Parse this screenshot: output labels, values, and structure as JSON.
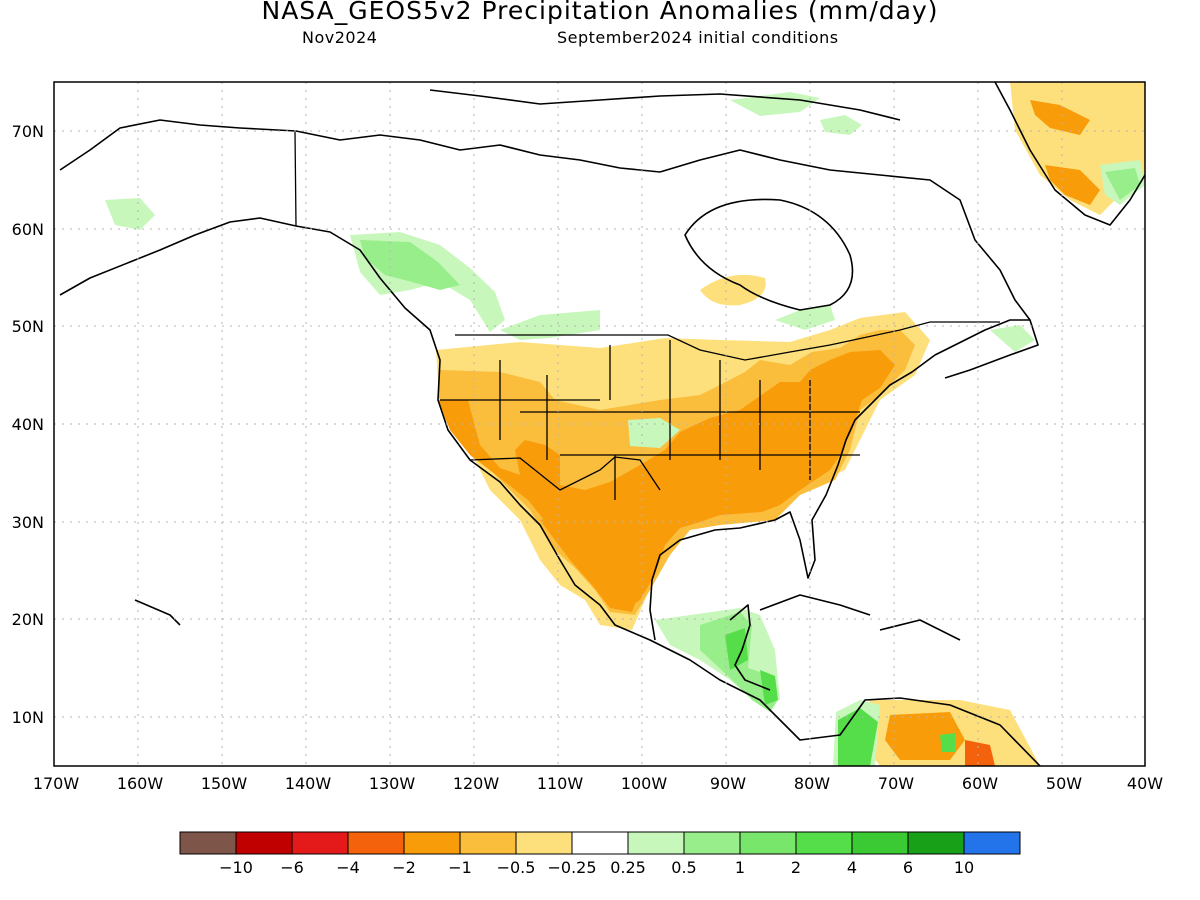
{
  "title": "NASA_GEOS5v2 Precipitation Anomalies (mm/day)",
  "subtitle_left": "Nov2024",
  "subtitle_right": "September2024 initial conditions",
  "lat_labels": [
    "70N",
    "60N",
    "50N",
    "40N",
    "30N",
    "20N",
    "10N"
  ],
  "lon_labels": [
    "170W",
    "160W",
    "150W",
    "140W",
    "130W",
    "120W",
    "110W",
    "100W",
    "90W",
    "80W",
    "70W",
    "60W",
    "50W",
    "40W"
  ],
  "colorbar": {
    "colors": [
      "#7e5549",
      "#c00000",
      "#e41a1a",
      "#f4620c",
      "#f89c0a",
      "#fbbd3c",
      "#fde07c",
      "#ffffff",
      "#c8f7bc",
      "#98ee8a",
      "#78e66a",
      "#55dd4a",
      "#3cca34",
      "#18a018",
      "#2373ea"
    ],
    "labels": [
      "−10",
      "−6",
      "−4",
      "−2",
      "−1",
      "−0.5",
      "−0.25",
      "0.25",
      "0.5",
      "1",
      "2",
      "4",
      "6",
      "10"
    ]
  }
}
